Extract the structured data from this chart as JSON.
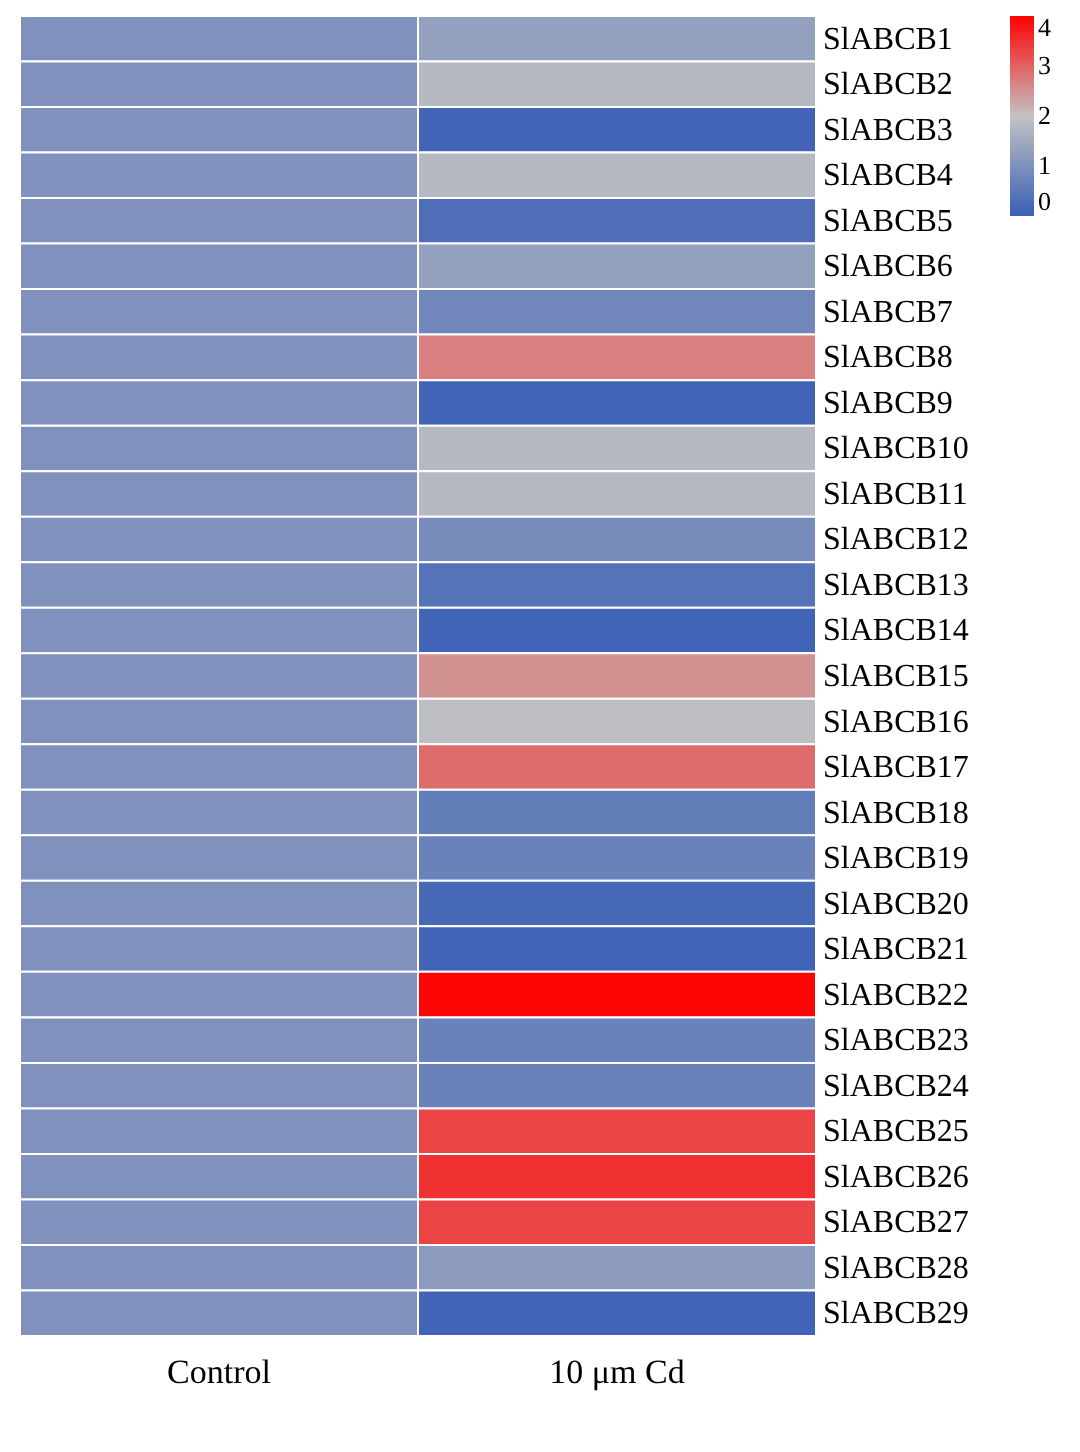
{
  "chart_data": {
    "type": "heatmap",
    "categories": [
      "Control",
      "10 μm Cd"
    ],
    "y_categories": [
      "SlABCB1",
      "SlABCB2",
      "SlABCB3",
      "SlABCB4",
      "SlABCB5",
      "SlABCB6",
      "SlABCB7",
      "SlABCB8",
      "SlABCB9",
      "SlABCB10",
      "SlABCB11",
      "SlABCB12",
      "SlABCB13",
      "SlABCB14",
      "SlABCB15",
      "SlABCB16",
      "SlABCB17",
      "SlABCB18",
      "SlABCB19",
      "SlABCB20",
      "SlABCB21",
      "SlABCB22",
      "SlABCB23",
      "SlABCB24",
      "SlABCB25",
      "SlABCB26",
      "SlABCB27",
      "SlABCB28",
      "SlABCB29"
    ],
    "cells": [
      [
        1,
        1.3
      ],
      [
        1,
        1.8
      ],
      [
        1,
        0.1
      ],
      [
        1,
        1.8
      ],
      [
        1,
        0.3
      ],
      [
        1,
        1.3
      ],
      [
        1,
        0.8
      ],
      [
        1,
        2.7
      ],
      [
        1,
        0.1
      ],
      [
        1,
        1.8
      ],
      [
        1,
        1.8
      ],
      [
        1,
        0.9
      ],
      [
        1,
        0.4
      ],
      [
        1,
        0.1
      ],
      [
        1,
        2.5
      ],
      [
        1,
        1.9
      ],
      [
        1,
        2.9
      ],
      [
        1,
        0.6
      ],
      [
        1,
        0.7
      ],
      [
        1,
        0.2
      ],
      [
        1,
        0.1
      ],
      [
        1,
        3.95
      ],
      [
        1,
        0.7
      ],
      [
        1,
        0.7
      ],
      [
        1,
        3.3
      ],
      [
        1,
        3.5
      ],
      [
        1,
        3.3
      ],
      [
        1,
        1.2
      ],
      [
        1,
        0.1
      ]
    ],
    "clim": [
      0,
      4
    ],
    "cticks": [
      0,
      1,
      2,
      3,
      4
    ]
  }
}
